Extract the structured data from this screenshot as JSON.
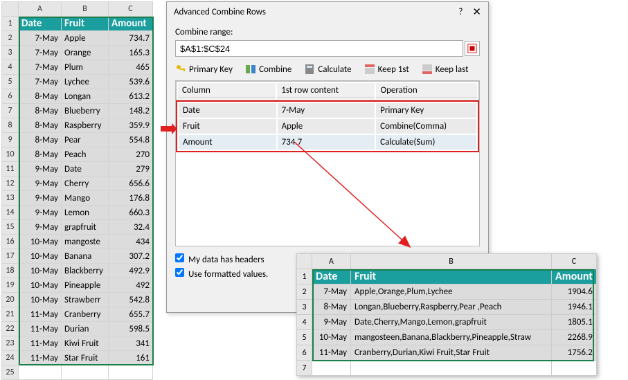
{
  "sheet": {
    "colHeaders": [
      "A",
      "B",
      "C"
    ],
    "header": {
      "A": "Date",
      "B": "Fruit",
      "C": "Amount"
    },
    "rows": [
      {
        "n": 2,
        "A": "7-May",
        "B": "Apple",
        "C": "734.7"
      },
      {
        "n": 3,
        "A": "7-May",
        "B": "Orange",
        "C": "165.3"
      },
      {
        "n": 4,
        "A": "7-May",
        "B": "Plum",
        "C": "465"
      },
      {
        "n": 5,
        "A": "7-May",
        "B": "Lychee",
        "C": "539.6"
      },
      {
        "n": 6,
        "A": "8-May",
        "B": "Longan",
        "C": "613.2"
      },
      {
        "n": 7,
        "A": "8-May",
        "B": "Blueberry",
        "C": "148.2"
      },
      {
        "n": 8,
        "A": "8-May",
        "B": "Raspberry",
        "C": "359.9"
      },
      {
        "n": 9,
        "A": "8-May",
        "B": "Pear",
        "C": "554.8"
      },
      {
        "n": 10,
        "A": "8-May",
        "B": "Peach",
        "C": "270"
      },
      {
        "n": 11,
        "A": "9-May",
        "B": "Date",
        "C": "279"
      },
      {
        "n": 12,
        "A": "9-May",
        "B": "Cherry",
        "C": "656.6"
      },
      {
        "n": 13,
        "A": "9-May",
        "B": "Mango",
        "C": "176.8"
      },
      {
        "n": 14,
        "A": "9-May",
        "B": "Lemon",
        "C": "660.3"
      },
      {
        "n": 15,
        "A": "9-May",
        "B": "grapfruit",
        "C": "32.4"
      },
      {
        "n": 16,
        "A": "10-May",
        "B": "mangoste",
        "C": "434"
      },
      {
        "n": 17,
        "A": "10-May",
        "B": "Banana",
        "C": "307.2"
      },
      {
        "n": 18,
        "A": "10-May",
        "B": "Blackberry",
        "C": "492.9"
      },
      {
        "n": 19,
        "A": "10-May",
        "B": "Pineapple",
        "C": "492"
      },
      {
        "n": 20,
        "A": "10-May",
        "B": "Strawberr",
        "C": "542.8"
      },
      {
        "n": 21,
        "A": "11-May",
        "B": "Cranberry",
        "C": "655.7"
      },
      {
        "n": 22,
        "A": "11-May",
        "B": "Durian",
        "C": "598.5"
      },
      {
        "n": 23,
        "A": "11-May",
        "B": "Kiwi Fruit",
        "C": "341"
      },
      {
        "n": 24,
        "A": "11-May",
        "B": "Star Fruit",
        "C": "161"
      }
    ],
    "lastRowHeader": "25"
  },
  "dialog": {
    "title": "Advanced Combine Rows",
    "help": "?",
    "close": "✕",
    "rangeLabel": "Combine range:",
    "rangeValue": "$A$1:$C$24",
    "buttons": {
      "primaryKey": "Primary Key",
      "combine": "Combine",
      "calculate": "Calculate",
      "keep1st": "Keep 1st",
      "keepLast": "Keep last"
    },
    "colTable": {
      "headers": {
        "col": "Column",
        "first": "1st row content",
        "op": "Operation"
      },
      "rows": [
        {
          "col": "Date",
          "first": "7-May",
          "op": "Primary Key"
        },
        {
          "col": "Fruit",
          "first": "Apple",
          "op": "Combine(Comma)"
        },
        {
          "col": "Amount",
          "first": "734.7",
          "op": "Calculate(Sum)"
        }
      ]
    },
    "checks": {
      "headers": "My data has headers",
      "formatted": "Use formatted values."
    }
  },
  "result": {
    "colHeaders": [
      "A",
      "B",
      "C"
    ],
    "header": {
      "A": "Date",
      "B": "Fruit",
      "C": "Amount"
    },
    "rows": [
      {
        "n": 2,
        "A": "7-May",
        "B": "Apple,Orange,Plum,Lychee",
        "C": "1904.6"
      },
      {
        "n": 3,
        "A": "8-May",
        "B": "Longan,Blueberry,Raspberry,Pear ,Peach",
        "C": "1946.1"
      },
      {
        "n": 4,
        "A": "9-May",
        "B": "Date,Cherry,Mango,Lemon,grapfruit",
        "C": "1805.1"
      },
      {
        "n": 5,
        "A": "10-May",
        "B": "mangosteen,Banana,Blackberry,Pineapple,Straw",
        "C": "2268.9"
      },
      {
        "n": 6,
        "A": "11-May",
        "B": "Cranberry,Durian,Kiwi Fruit,Star Fruit",
        "C": "1756.2"
      }
    ],
    "lastRowHeader": "7"
  },
  "colors": {
    "headerTeal": "#1b9e9e",
    "redBox": "#e02020",
    "greenSel": "#1a7f4a"
  }
}
